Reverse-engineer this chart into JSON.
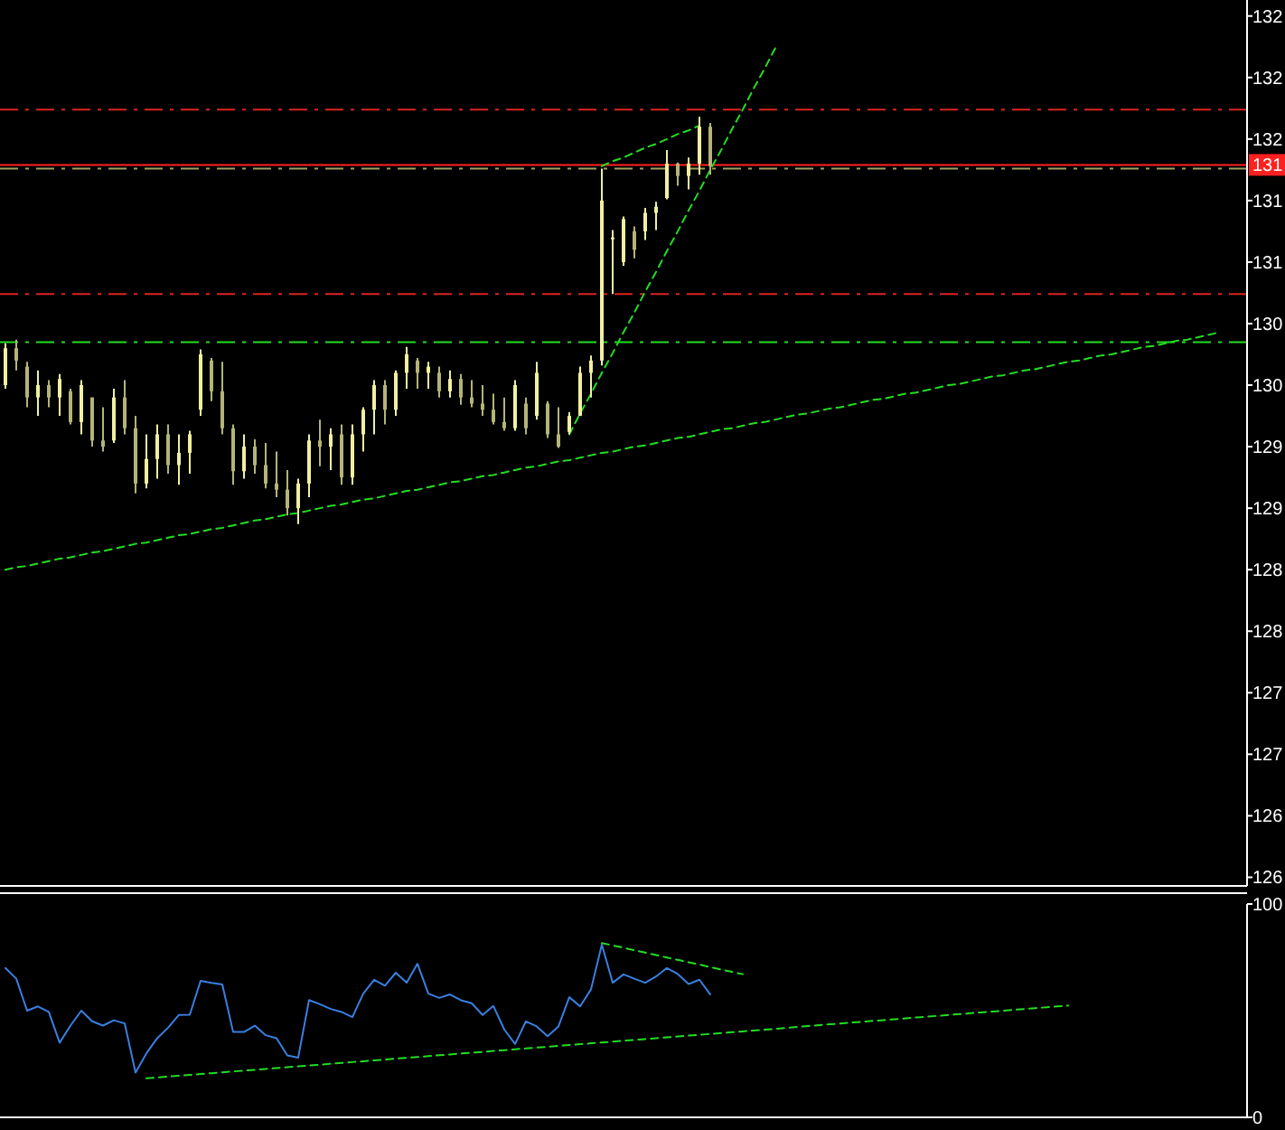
{
  "chart_data": [
    {
      "type": "candlestick",
      "colors": [
        "#f0f0a0",
        "#b4b478",
        "#b4b478",
        "#f0f0a0",
        "#b4b478",
        "#f0f0a0",
        "#b4b478",
        "#f0f0a0",
        "#b4b478",
        "#b4b478",
        "#f0f0a0",
        "#b4b478",
        "#b4b478",
        "#f0f0a0",
        "#f0f0a0",
        "#b4b478",
        "#f0f0a0",
        "#f0f0a0",
        "#f0f0a0",
        "#b4b478",
        "#b4b478",
        "#b4b478",
        "#f0f0a0",
        "#b4b478",
        "#b4b478",
        "#b4b478",
        "#b4b478",
        "#f0f0a0",
        "#f0f0a0",
        "#b4b478",
        "#f0f0a0",
        "#b4b478",
        "#f0f0a0",
        "#f0f0a0",
        "#f0f0a0",
        "#b4b478",
        "#f0f0a0",
        "#f0f0a0",
        "#b4b478",
        "#f0f0a0",
        "#b4b478",
        "#f0f0a0",
        "#b4b478",
        "#b4b478",
        "#b4b478",
        "#b4b478",
        "#b4b478",
        "#f0f0a0",
        "#b4b478",
        "#f0f0a0",
        "#b4b478",
        "#b4b478",
        "#f0f0a0",
        "#f0f0a0",
        "#f0f0a0",
        "#f0f0a0",
        "#f0f0a0",
        "#f0f0a0",
        "#b4b478",
        "#f0f0a0",
        "#f0f0a0",
        "#f0f0a0",
        "#b4b478",
        "#f0f0a0",
        "#f0f0a0",
        "#b4b478",
        null,
        null,
        null,
        null,
        null,
        null,
        null,
        null,
        null,
        null,
        null,
        null,
        null,
        null,
        null,
        null,
        null,
        null,
        null,
        null,
        null,
        null,
        null,
        null,
        null,
        null,
        null,
        null,
        null,
        null,
        null,
        null,
        null,
        null,
        null,
        null,
        null,
        null,
        null,
        null,
        null,
        null,
        null,
        null,
        null,
        null,
        null,
        null,
        null
      ],
      "ylim": [
        125.43,
        132.63
      ],
      "tick_labels": "y",
      "categories": [
        null,
        null,
        null,
        null,
        null,
        null,
        null,
        null,
        null,
        null,
        null,
        null,
        null,
        null,
        null,
        null,
        null,
        null,
        null,
        null,
        null,
        null,
        null,
        null,
        null,
        null,
        null,
        null,
        null,
        null,
        null,
        null,
        null,
        null,
        null,
        null,
        null,
        null,
        null,
        null,
        null,
        null,
        null,
        null,
        null,
        null,
        null,
        null,
        null,
        null,
        null,
        null,
        null,
        null,
        null,
        null,
        null,
        null,
        null,
        null,
        null,
        null,
        null,
        null,
        null,
        null,
        null,
        null,
        null,
        null,
        null,
        null,
        null,
        null,
        null,
        null,
        null,
        null,
        null,
        null,
        null,
        null,
        null,
        null,
        null,
        null,
        null,
        null,
        null,
        null,
        null,
        null,
        null,
        null,
        null,
        null,
        null,
        null,
        null,
        null,
        null,
        null,
        null,
        null,
        null,
        null,
        null,
        null,
        null,
        null,
        null,
        null,
        null,
        null,
        null
      ],
      "yticks": [
        {
          "value": 132.5,
          "label": "132"
        },
        {
          "value": 132,
          "label": "132"
        },
        {
          "value": 131.5,
          "label": "132"
        },
        {
          "value": 131,
          "label": "131"
        },
        {
          "value": 130.5,
          "label": "131"
        },
        {
          "value": 130,
          "label": "130"
        },
        {
          "value": 129.5,
          "label": "130"
        },
        {
          "value": 129,
          "label": "129"
        },
        {
          "value": 128.5,
          "label": "129"
        },
        {
          "value": 128,
          "label": "128"
        },
        {
          "value": 127.5,
          "label": "128"
        },
        {
          "value": 127,
          "label": "127"
        },
        {
          "value": 126.5,
          "label": "127"
        },
        {
          "value": 126,
          "label": "126"
        },
        {
          "value": 125.5,
          "label": "126"
        }
      ],
      "ohlc": [
        [
          129.5,
          129.84,
          129.47,
          129.8
        ],
        [
          129.8,
          129.87,
          129.62,
          129.7
        ],
        [
          129.65,
          129.69,
          129.32,
          129.4
        ],
        [
          129.4,
          129.62,
          129.25,
          129.5
        ],
        [
          129.5,
          129.54,
          129.32,
          129.4
        ],
        [
          129.4,
          129.59,
          129.25,
          129.55
        ],
        [
          129.45,
          129.47,
          129.18,
          129.2
        ],
        [
          129.2,
          129.54,
          129.1,
          129.5
        ],
        [
          129.4,
          129.4,
          129.0,
          129.05
        ],
        [
          129.05,
          129.32,
          128.96,
          129.0
        ],
        [
          129.05,
          129.47,
          129.03,
          129.4
        ],
        [
          129.4,
          129.54,
          129.1,
          129.15
        ],
        [
          129.15,
          129.25,
          128.62,
          128.7
        ],
        [
          128.7,
          129.1,
          128.66,
          128.9
        ],
        [
          128.9,
          129.18,
          128.74,
          129.1
        ],
        [
          129.1,
          129.18,
          128.78,
          128.85
        ],
        [
          128.85,
          129.1,
          128.69,
          128.95
        ],
        [
          128.95,
          129.13,
          128.78,
          129.1
        ],
        [
          129.3,
          129.79,
          129.25,
          129.75
        ],
        [
          129.7,
          129.72,
          129.37,
          129.45
        ],
        [
          129.45,
          129.69,
          129.1,
          129.15
        ],
        [
          129.15,
          129.18,
          128.69,
          128.8
        ],
        [
          128.8,
          129.1,
          128.74,
          129.0
        ],
        [
          129.0,
          129.06,
          128.78,
          128.85
        ],
        [
          128.85,
          129.03,
          128.66,
          128.7
        ],
        [
          128.7,
          128.96,
          128.59,
          128.65
        ],
        [
          128.65,
          128.81,
          128.44,
          128.5
        ],
        [
          128.5,
          128.74,
          128.37,
          128.7
        ],
        [
          128.7,
          129.1,
          128.59,
          129.05
        ],
        [
          129.05,
          129.22,
          128.84,
          129.0
        ],
        [
          129.0,
          129.15,
          128.81,
          129.1
        ],
        [
          129.1,
          129.18,
          128.69,
          128.75
        ],
        [
          128.75,
          129.18,
          128.69,
          129.1
        ],
        [
          129.1,
          129.32,
          128.96,
          129.3
        ],
        [
          129.3,
          129.54,
          129.1,
          129.5
        ],
        [
          129.5,
          129.54,
          129.18,
          129.3
        ],
        [
          129.3,
          129.62,
          129.25,
          129.6
        ],
        [
          129.6,
          129.81,
          129.47,
          129.75
        ],
        [
          129.7,
          129.72,
          129.47,
          129.6
        ],
        [
          129.6,
          129.69,
          129.47,
          129.65
        ],
        [
          129.6,
          129.65,
          129.4,
          129.45
        ],
        [
          129.45,
          129.62,
          129.4,
          129.55
        ],
        [
          129.55,
          129.59,
          129.34,
          129.4
        ],
        [
          129.4,
          129.54,
          129.32,
          129.35
        ],
        [
          129.35,
          129.5,
          129.25,
          129.3
        ],
        [
          129.3,
          129.43,
          129.18,
          129.2
        ],
        [
          129.2,
          129.4,
          129.13,
          129.15
        ],
        [
          129.15,
          129.54,
          129.13,
          129.5
        ],
        [
          129.35,
          129.4,
          129.1,
          129.15
        ],
        [
          129.25,
          129.69,
          129.22,
          129.6
        ],
        [
          129.35,
          129.37,
          129.07,
          129.1
        ],
        [
          129.1,
          129.32,
          128.99,
          129.0
        ],
        [
          129.12,
          129.28,
          129.1,
          129.25
        ],
        [
          129.25,
          129.65,
          129.25,
          129.6
        ],
        [
          129.6,
          129.74,
          129.4,
          129.7
        ],
        [
          129.7,
          131.26,
          129.66,
          131.0
        ],
        [
          130.7,
          130.76,
          130.24,
          130.7
        ],
        [
          130.5,
          130.87,
          130.47,
          130.85
        ],
        [
          130.75,
          130.79,
          130.53,
          130.6
        ],
        [
          130.75,
          130.94,
          130.68,
          130.9
        ],
        [
          130.9,
          130.99,
          130.76,
          130.95
        ],
        [
          131.02,
          131.41,
          131.01,
          131.3
        ],
        [
          131.3,
          131.31,
          131.12,
          131.2
        ],
        [
          131.2,
          131.35,
          131.09,
          131.3
        ],
        [
          131.3,
          131.68,
          131.21,
          131.6
        ],
        [
          131.6,
          131.63,
          131.21,
          131.28
        ],
        null,
        null,
        null,
        null,
        null,
        null,
        null,
        null,
        null,
        null,
        null,
        null,
        null,
        null,
        null,
        null,
        null,
        null,
        null,
        null,
        null,
        null,
        null,
        null,
        null,
        null,
        null,
        null,
        null,
        null,
        null,
        null,
        null,
        null,
        null,
        null,
        null,
        null,
        null,
        null,
        null,
        null,
        null,
        null,
        null,
        null,
        null,
        null,
        null
      ],
      "series": [
        {
          "type": "line",
          "color": "#22dd22",
          "line_style": "dashed",
          "values": [
            128.0,
            128.02,
            128.03,
            128.05,
            128.07,
            128.09,
            128.1,
            128.12,
            128.14,
            128.15,
            128.17,
            128.19,
            128.21,
            128.22,
            128.24,
            128.26,
            128.28,
            128.29,
            128.31,
            128.33,
            128.34,
            128.36,
            128.38,
            128.4,
            128.41,
            128.43,
            128.45,
            128.46,
            128.48,
            128.5,
            128.52,
            128.53,
            128.55,
            128.57,
            128.58,
            128.6,
            128.62,
            128.64,
            128.65,
            128.67,
            128.69,
            128.71,
            128.72,
            128.74,
            128.76,
            128.77,
            128.79,
            128.81,
            128.83,
            128.84,
            128.86,
            128.88,
            128.89,
            128.91,
            128.93,
            128.95,
            128.96,
            128.98,
            129.0,
            129.01,
            129.03,
            129.05,
            129.07,
            129.08,
            129.1,
            129.12,
            129.14,
            129.15,
            129.17,
            129.19,
            129.2,
            129.22,
            129.24,
            129.26,
            129.27,
            129.29,
            129.31,
            129.32,
            129.34,
            129.36,
            129.38,
            129.39,
            129.41,
            129.43,
            129.44,
            129.46,
            129.48,
            129.5,
            129.51,
            129.53,
            129.55,
            129.57,
            129.58,
            129.6,
            129.62,
            129.63,
            129.65,
            129.67,
            129.69,
            129.7,
            129.72,
            129.74,
            129.75,
            129.77,
            129.79,
            129.81,
            129.82,
            129.84,
            129.86,
            129.87,
            129.89,
            129.91,
            129.93,
            null,
            null
          ]
        },
        {
          "type": "line",
          "color": "#22dd22",
          "line_style": "dashed",
          "values": [
            null,
            null,
            null,
            null,
            null,
            null,
            null,
            null,
            null,
            null,
            null,
            null,
            null,
            null,
            null,
            null,
            null,
            null,
            null,
            null,
            null,
            null,
            null,
            null,
            null,
            null,
            null,
            null,
            null,
            null,
            null,
            null,
            null,
            null,
            null,
            null,
            null,
            null,
            null,
            null,
            null,
            null,
            null,
            null,
            null,
            null,
            null,
            null,
            null,
            null,
            null,
            null,
            129.1,
            129.27,
            129.43,
            129.6,
            129.76,
            129.93,
            130.09,
            130.26,
            130.42,
            130.59,
            130.75,
            130.92,
            131.08,
            131.25,
            131.41,
            131.58,
            131.74,
            131.91,
            132.07,
            132.24,
            null,
            null,
            null,
            null,
            null,
            null,
            null,
            null,
            null,
            null,
            null,
            null,
            null,
            null,
            null,
            null,
            null,
            null,
            null,
            null,
            null,
            null,
            null,
            null,
            null,
            null,
            null,
            null,
            null,
            null,
            null,
            null,
            null,
            null,
            null,
            null,
            null,
            null,
            null,
            null,
            null,
            null,
            null
          ]
        },
        {
          "type": "line",
          "color": "#22dd22",
          "line_style": "dashed",
          "values": [
            null,
            null,
            null,
            null,
            null,
            null,
            null,
            null,
            null,
            null,
            null,
            null,
            null,
            null,
            null,
            null,
            null,
            null,
            null,
            null,
            null,
            null,
            null,
            null,
            null,
            null,
            null,
            null,
            null,
            null,
            null,
            null,
            null,
            null,
            null,
            null,
            null,
            null,
            null,
            null,
            null,
            null,
            null,
            null,
            null,
            null,
            null,
            null,
            null,
            null,
            null,
            null,
            null,
            null,
            null,
            131.28,
            131.32,
            131.35,
            131.39,
            131.43,
            131.46,
            131.5,
            131.54,
            131.57,
            131.61,
            null,
            null,
            null,
            null,
            null,
            null,
            null,
            null,
            null,
            null,
            null,
            null,
            null,
            null,
            null,
            null,
            null,
            null,
            null,
            null,
            null,
            null,
            null,
            null,
            null,
            null,
            null,
            null,
            null,
            null,
            null,
            null,
            null,
            null,
            null,
            null,
            null,
            null,
            null,
            null,
            null,
            null,
            null,
            null,
            null,
            null,
            null,
            null,
            null,
            null
          ]
        }
      ],
      "ref_lines": [
        {
          "axis": "y",
          "value": 131.74,
          "color": "#dd2222",
          "line_style": "dashed"
        },
        {
          "axis": "y",
          "value": 131.29,
          "color": "#ff2020",
          "line_style": "solid",
          "label": "131"
        },
        {
          "axis": "y",
          "value": 131.26,
          "color": "#a0a060",
          "line_style": "dashed"
        },
        {
          "axis": "y",
          "value": 130.24,
          "color": "#dd2222",
          "line_style": "dashed"
        },
        {
          "axis": "y",
          "value": 129.85,
          "color": "#22dd22",
          "line_style": "dashed"
        }
      ]
    },
    {
      "type": "line",
      "ylim": [
        0,
        100
      ],
      "yticks": [
        0,
        100
      ],
      "tick_labels": "y",
      "categories": [
        null,
        null,
        null,
        null,
        null,
        null,
        null,
        null,
        null,
        null,
        null,
        null,
        null,
        null,
        null,
        null,
        null,
        null,
        null,
        null,
        null,
        null,
        null,
        null,
        null,
        null,
        null,
        null,
        null,
        null,
        null,
        null,
        null,
        null,
        null,
        null,
        null,
        null,
        null,
        null,
        null,
        null,
        null,
        null,
        null,
        null,
        null,
        null,
        null,
        null,
        null,
        null,
        null,
        null,
        null,
        null,
        null,
        null,
        null,
        null,
        null,
        null,
        null,
        null,
        null,
        null,
        null,
        null,
        null,
        null,
        null,
        null,
        null,
        null,
        null,
        null,
        null,
        null,
        null,
        null,
        null,
        null,
        null,
        null,
        null,
        null,
        null,
        null,
        null,
        null,
        null,
        null,
        null,
        null,
        null,
        null,
        null,
        null,
        null,
        null,
        null,
        null,
        null,
        null,
        null,
        null,
        null,
        null,
        null,
        null,
        null,
        null,
        null,
        null,
        null
      ],
      "series": [
        {
          "color": "#3a7fe0",
          "line_style": "solid",
          "values": [
            70,
            65,
            50,
            52,
            49.4,
            35,
            43,
            50,
            45,
            43,
            45.5,
            44,
            21,
            30,
            37.1,
            42,
            48,
            48.1,
            64,
            63,
            62.3,
            40,
            40,
            43,
            38.5,
            37.1,
            29,
            28,
            55,
            53,
            50.8,
            49.4,
            47,
            58,
            64.5,
            61.7,
            67.8,
            63.1,
            72,
            58,
            56,
            57.6,
            54.9,
            53.5,
            48,
            52.2,
            41.2,
            34.4,
            45,
            42.6,
            38,
            42.6,
            56.3,
            52,
            60,
            80.9,
            63.1,
            67,
            65,
            63.1,
            66,
            70,
            67.2,
            62.5,
            64.5,
            57.6,
            null,
            null,
            null,
            null,
            null,
            null,
            null,
            null,
            null,
            null,
            null,
            null,
            null,
            null,
            null,
            null,
            null,
            null,
            null,
            null,
            null,
            null,
            null,
            null,
            null,
            null,
            null,
            null,
            null,
            null,
            null,
            null,
            null,
            null,
            null,
            null,
            null,
            null,
            null,
            null,
            null,
            null,
            null,
            null,
            null,
            null,
            null,
            null,
            null
          ]
        },
        {
          "color": "#22dd22",
          "line_style": "dashed",
          "values": [
            null,
            null,
            null,
            null,
            null,
            null,
            null,
            null,
            null,
            null,
            null,
            null,
            null,
            18.3,
            18.7,
            19.1,
            19.5,
            19.9,
            20.3,
            20.7,
            21.1,
            21.5,
            21.9,
            22.3,
            22.7,
            23.1,
            23.5,
            23.9,
            24.3,
            24.7,
            25.1,
            25.5,
            25.9,
            26.3,
            26.7,
            27.1,
            27.5,
            27.9,
            28.3,
            28.7,
            29.1,
            29.5,
            29.9,
            30.3,
            30.7,
            31.1,
            31.5,
            31.9,
            32.3,
            32.7,
            33.1,
            33.5,
            33.9,
            34.3,
            34.7,
            35.1,
            35.5,
            35.9,
            36.3,
            36.7,
            37.1,
            37.5,
            37.9,
            38.3,
            38.7,
            39.1,
            39.5,
            39.9,
            40.3,
            40.7,
            41.1,
            41.5,
            41.9,
            42.4,
            42.8,
            43.2,
            43.6,
            44.0,
            44.4,
            44.8,
            45.2,
            45.6,
            46.0,
            46.4,
            46.8,
            47.2,
            47.6,
            48.0,
            48.4,
            48.8,
            49.2,
            49.6,
            50.0,
            50.4,
            50.8,
            51.2,
            51.6,
            52.0,
            52.4,
            null,
            null,
            null,
            null,
            null,
            null,
            null,
            null,
            null,
            null,
            null,
            null,
            null,
            null,
            null,
            null
          ]
        },
        {
          "color": "#22dd22",
          "line_style": "dashed",
          "values": [
            null,
            null,
            null,
            null,
            null,
            null,
            null,
            null,
            null,
            null,
            null,
            null,
            null,
            null,
            null,
            null,
            null,
            null,
            null,
            null,
            null,
            null,
            null,
            null,
            null,
            null,
            null,
            null,
            null,
            null,
            null,
            null,
            null,
            null,
            null,
            null,
            null,
            null,
            null,
            null,
            null,
            null,
            null,
            null,
            null,
            null,
            null,
            null,
            null,
            null,
            null,
            null,
            null,
            null,
            null,
            81.7,
            80.6,
            79.5,
            78.3,
            77.2,
            76.1,
            74.9,
            73.8,
            72.7,
            71.6,
            70.4,
            69.3,
            68.2,
            67.1,
            null,
            null,
            null,
            null,
            null,
            null,
            null,
            null,
            null,
            null,
            null,
            null,
            null,
            null,
            null,
            null,
            null,
            null,
            null,
            null,
            null,
            null,
            null,
            null,
            null,
            null,
            null,
            null,
            null,
            null,
            null,
            null,
            null,
            null,
            null,
            null,
            null,
            null,
            null,
            null,
            null,
            null,
            null,
            null,
            null,
            null
          ]
        }
      ]
    }
  ]
}
